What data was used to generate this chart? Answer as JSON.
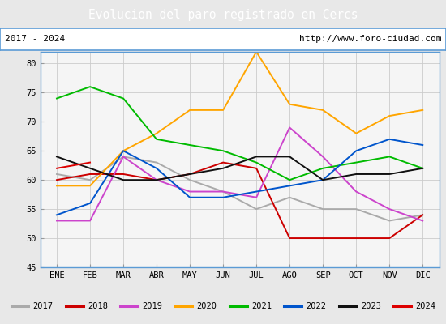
{
  "title": "Evolucion del paro registrado en Cercs",
  "subtitle_left": "2017 - 2024",
  "subtitle_right": "http://www.foro-ciudad.com",
  "title_bg_color": "#5b9bd5",
  "title_text_color": "#ffffff",
  "months": [
    "ENE",
    "FEB",
    "MAR",
    "ABR",
    "MAY",
    "JUN",
    "JUL",
    "AGO",
    "SEP",
    "OCT",
    "NOV",
    "DIC"
  ],
  "ylim": [
    45,
    82
  ],
  "yticks": [
    45,
    50,
    55,
    60,
    65,
    70,
    75,
    80
  ],
  "series": {
    "2017": {
      "color": "#aaaaaa",
      "values": [
        61,
        60,
        64,
        63,
        60,
        58,
        55,
        57,
        55,
        55,
        53,
        54
      ]
    },
    "2018": {
      "color": "#cc0000",
      "values": [
        60,
        61,
        61,
        60,
        61,
        63,
        62,
        50,
        50,
        50,
        50,
        54
      ]
    },
    "2019": {
      "color": "#cc44cc",
      "values": [
        53,
        53,
        64,
        60,
        58,
        58,
        57,
        69,
        64,
        58,
        55,
        53
      ]
    },
    "2020": {
      "color": "#ffa500",
      "values": [
        59,
        59,
        65,
        68,
        72,
        72,
        82,
        73,
        72,
        68,
        71,
        72
      ]
    },
    "2021": {
      "color": "#00bb00",
      "values": [
        74,
        76,
        74,
        67,
        66,
        65,
        63,
        60,
        62,
        63,
        64,
        62
      ]
    },
    "2022": {
      "color": "#0055cc",
      "values": [
        54,
        56,
        65,
        62,
        57,
        57,
        58,
        59,
        60,
        65,
        67,
        66
      ]
    },
    "2023": {
      "color": "#111111",
      "values": [
        64,
        62,
        60,
        60,
        61,
        62,
        64,
        64,
        60,
        61,
        61,
        62
      ]
    },
    "2024": {
      "color": "#dd0000",
      "values": [
        62,
        63,
        null,
        null,
        null,
        null,
        null,
        null,
        null,
        null,
        null,
        null
      ]
    }
  },
  "bg_color": "#e8e8e8",
  "plot_bg_color": "#f5f5f5",
  "grid_color": "#cccccc",
  "legend_bg": "#ffffff",
  "border_color": "#5b9bd5"
}
